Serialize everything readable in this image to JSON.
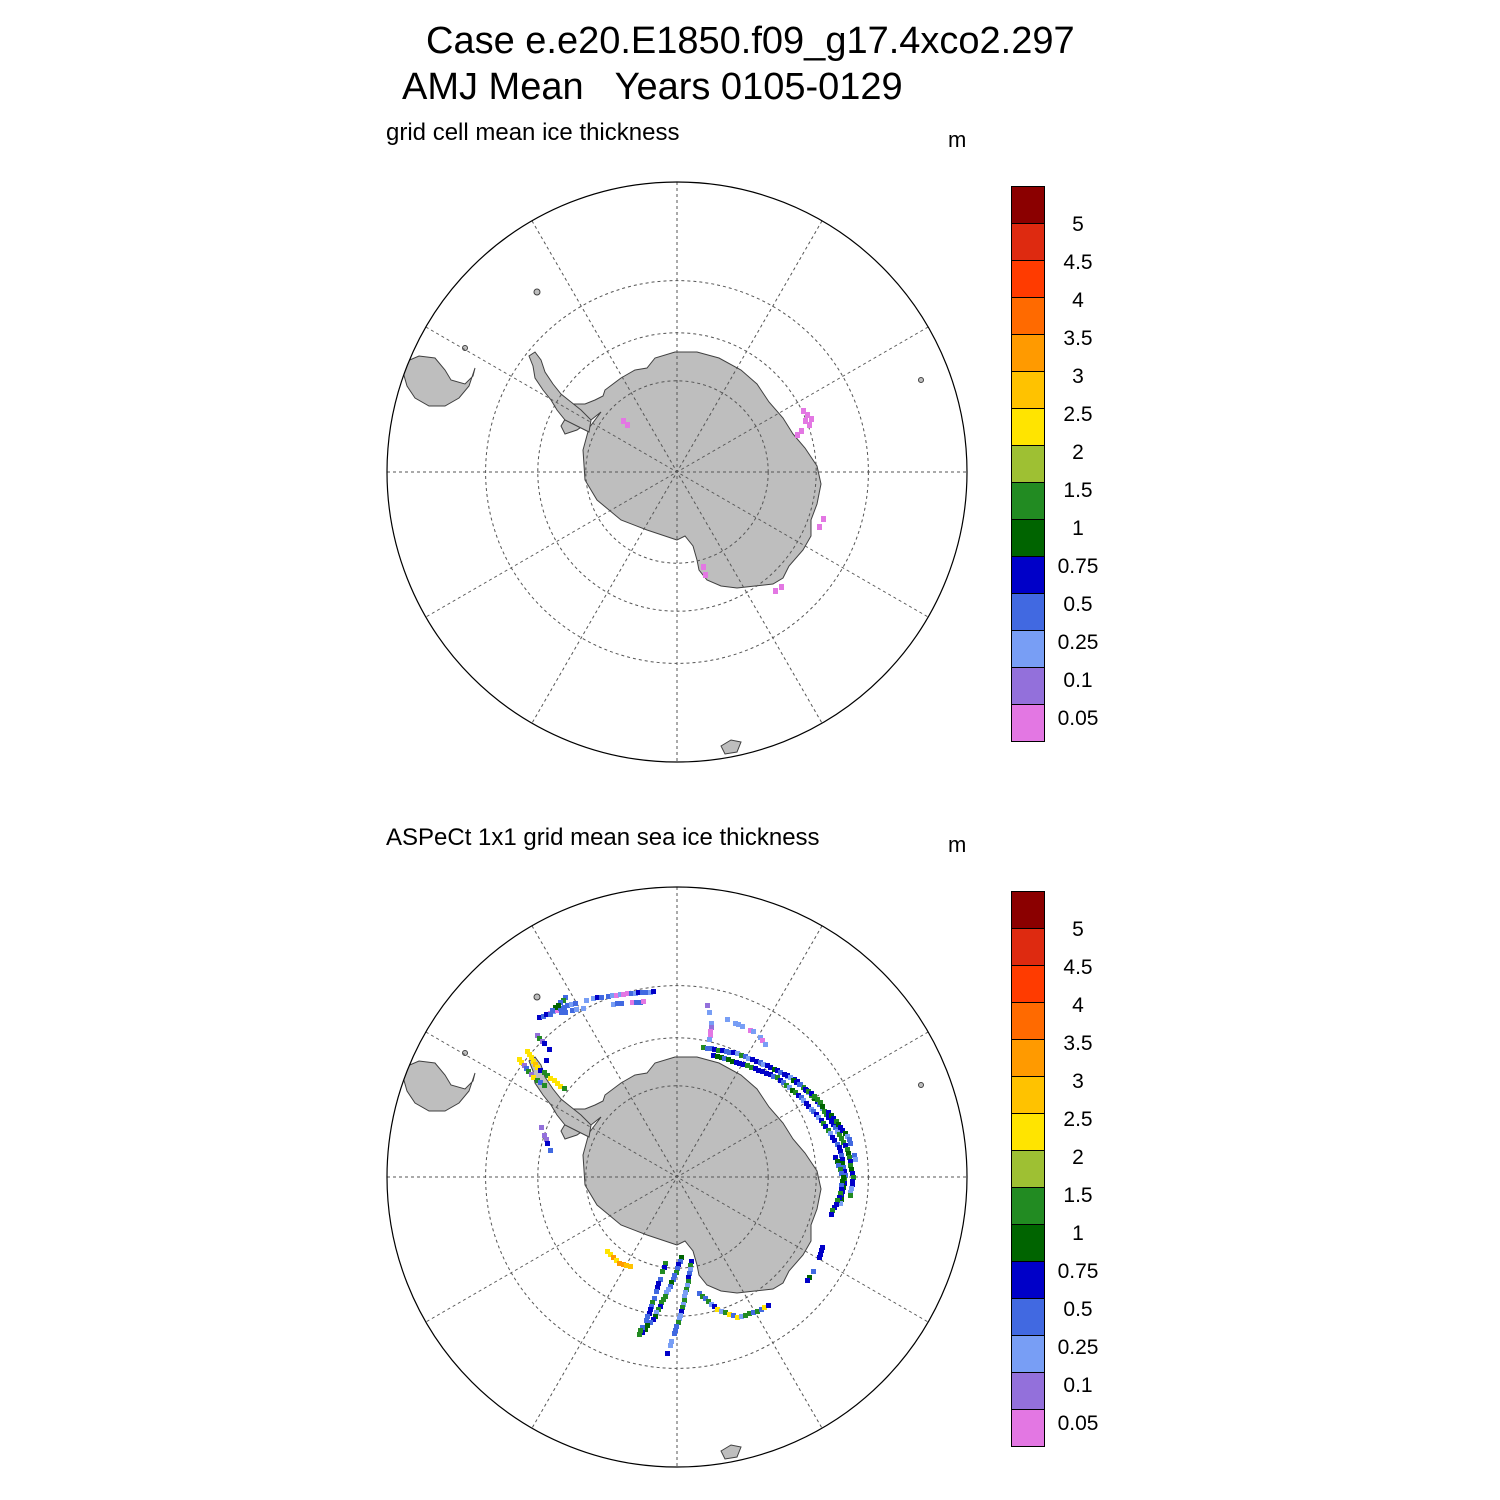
{
  "titles": {
    "line1": "Case e.e20.E1850.f09_g17.4xco2.297",
    "line2": "AMJ Mean   Years 0105-0129"
  },
  "panels": [
    {
      "title": "grid cell mean ice thickness",
      "unit": "m"
    },
    {
      "title": "ASPeCt 1x1 grid mean sea ice thickness",
      "unit": "m"
    }
  ],
  "colorbar": {
    "labels": [
      "5",
      "4.5",
      "4",
      "3.5",
      "3",
      "2.5",
      "2",
      "1.5",
      "1",
      "0.75",
      "0.5",
      "0.25",
      "0.1",
      "0.05"
    ],
    "colors": [
      "#8b0000",
      "#de2a10",
      "#ff3b00",
      "#ff6a00",
      "#ff9a00",
      "#ffc200",
      "#ffe400",
      "#9ec033",
      "#228b22",
      "#006400",
      "#0000c8",
      "#4169e1",
      "#789ef5",
      "#9370db",
      "#e377e3"
    ]
  },
  "map_colors": {
    "land": "#bebebe",
    "coast": "#404040",
    "grid": "#555555"
  }
}
